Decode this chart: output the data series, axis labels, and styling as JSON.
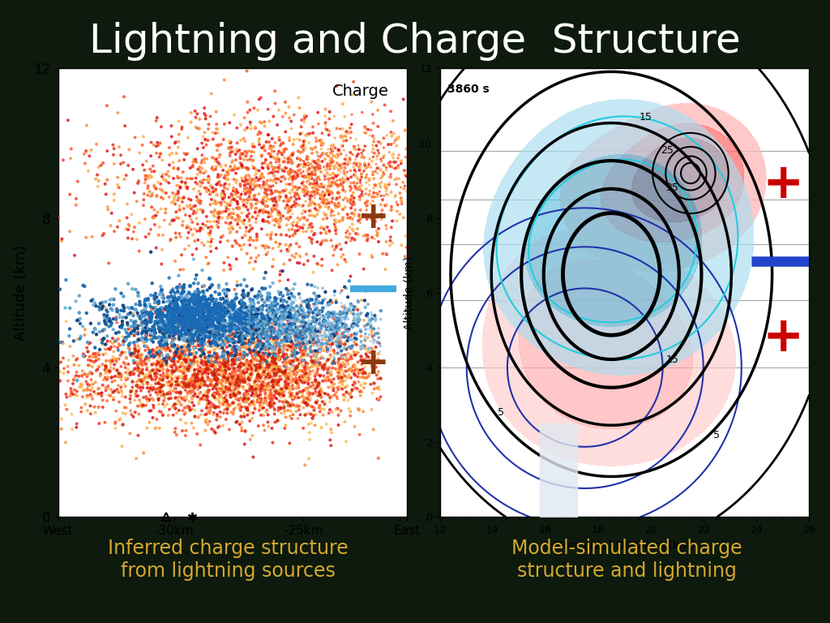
{
  "title": "Lightning and Charge  Structure",
  "title_color": "#ffffff",
  "title_fontsize": 36,
  "background_color": "#0d1a0d",
  "left_panel": {
    "xlabel_left": "West",
    "xlabel_right": "East",
    "xlabel_mid1": "-30km",
    "xlabel_mid2": "-25km",
    "ylabel": "Altitude (km)",
    "charge_label": "Charge",
    "plus_top_color": "#8b3a10",
    "minus_color": "#42aadd",
    "plus_bot_color": "#8b3a10",
    "caption": "Inferred charge structure\nfrom lightning sources",
    "caption_color": "#d4a830"
  },
  "right_panel": {
    "caption": "Model-simulated charge\nstructure and lightning",
    "caption_color": "#d4a830"
  }
}
